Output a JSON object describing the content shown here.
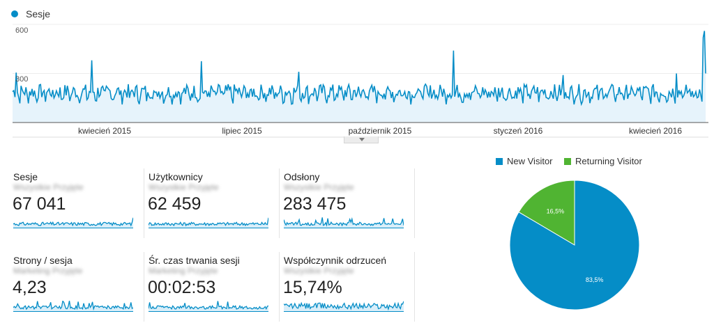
{
  "main_chart": {
    "legend_label": "Sesje",
    "y_ticks": [
      "600",
      "300"
    ],
    "x_ticks": [
      "kwiecień 2015",
      "lipiec 2015",
      "październik 2015",
      "styczeń 2016",
      "kwiecień 2016"
    ],
    "color": "#058dc7",
    "fill": "#e6f3fb",
    "base_value": 190,
    "spikes": [
      {
        "day": 3,
        "value": 305
      },
      {
        "day": 65,
        "value": 380
      },
      {
        "day": 155,
        "value": 375
      },
      {
        "day": 235,
        "value": 310
      },
      {
        "day": 362,
        "value": 440
      },
      {
        "day": 452,
        "value": 290
      },
      {
        "day": 545,
        "value": 300
      },
      {
        "day": 567,
        "value": 520
      },
      {
        "day": 568,
        "value": 560
      },
      {
        "day": 569,
        "value": 300
      }
    ]
  },
  "metrics": [
    {
      "title": "Sesje",
      "sub": "Wszystkie Przyjęte",
      "value": "67 041"
    },
    {
      "title": "Użytkownicy",
      "sub": "Wszystkie Przyjęte",
      "value": "62 459"
    },
    {
      "title": "Odsłony",
      "sub": "Wszystkie Przyjęte",
      "value": "283 475"
    },
    {
      "title": "Strony / sesja",
      "sub": "Marketing Przyjęte",
      "value": "4,23"
    },
    {
      "title": "Śr. czas trwania sesji",
      "sub": "Marketing Przyjęte",
      "value": "00:02:53"
    },
    {
      "title": "Współczynnik odrzuceń",
      "sub": "Wszystkie Przyjęte",
      "value": "15,74%"
    }
  ],
  "chart_data": {
    "type": "pie",
    "categories": [
      "New Visitor",
      "Returning Visitor"
    ],
    "values": [
      83.5,
      16.5
    ],
    "labels": [
      "83,5%",
      "16,5%"
    ],
    "colors": [
      "#058dc7",
      "#50b432"
    ]
  }
}
